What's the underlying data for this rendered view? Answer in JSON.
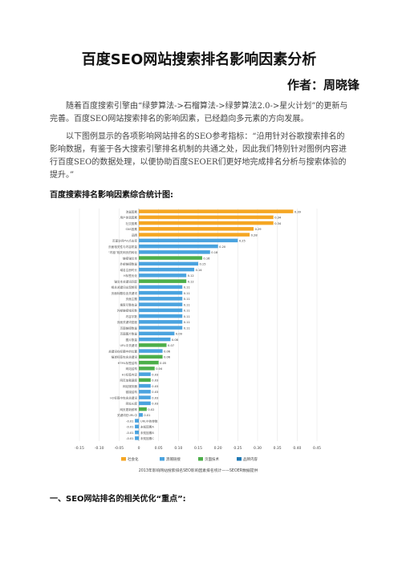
{
  "document": {
    "title": "百度SEO网站搜索排名影响因素分析",
    "author": "作者：周晓锋",
    "paragraph_1": "随着百度搜索引擎由“绿萝算法->石榴算法->绿萝算法2.0->星火计划”的更新与完善。百度SEO网站搜索排名的影响因素，已经趋向多元素的方向发展。",
    "paragraph_2": "以下图例显示的各项影响网站排名的SEO参考指标：“沿用针对谷歌搜索排名的影响数据，有鉴于各大搜索引擎排名机制的共通之处，因此我们特别针对图例内容进行百度SEO的数据处理，以便协助百度SEOER们更好地完成排名分析与搜索体验的提升。”",
    "chart_heading": "百度搜索排名影响因素综合统计图:",
    "section_heading": "一、SEO网站排名的相关优化“重点”:"
  },
  "chart_data": {
    "type": "bar",
    "orientation": "horizontal",
    "categories": [
      "流量因素",
      "用户体验因素",
      "社交因素",
      "SNS因素",
      "品牌",
      "页面访问PV/点击率",
      "页面相关性与内容质量",
      "“内链”相关网页的转化",
      "链接锚文本",
      "外部链接数量",
      "域名注册时长",
      "H标签优化",
      "锚文本关键词匹配",
      "相关关键词出现频率",
      "页面标题包含关键词",
      "页面主题",
      "搜索引擎收录",
      "外部链接域名数",
      "内容字数",
      "页面关键词密度",
      "页面链接数量",
      "页面图片数量",
      "图片数量",
      "URL中关键词",
      "关键词在标题中的位置",
      "描述标签包含关键词",
      "HTML标签结构",
      "网站结构",
      "H1标签内容",
      "网页加载速度",
      "网站服务器",
      "链接结构",
      "H2标签中包含关键词",
      "网址长度",
      "网页更新频率",
      "关键词在URL中",
      "URL中的参数",
      "未知因素A",
      "未知因素B",
      "未知因素C"
    ],
    "values": [
      0.39,
      0.34,
      0.34,
      0.29,
      0.28,
      0.25,
      0.2,
      0.18,
      0.16,
      0.15,
      0.14,
      0.12,
      0.12,
      0.11,
      0.11,
      0.11,
      0.11,
      0.11,
      0.11,
      0.11,
      0.11,
      0.09,
      0.08,
      0.07,
      0.06,
      0.06,
      0.05,
      0.04,
      0.03,
      0.03,
      0.03,
      0.03,
      0.03,
      0.03,
      0.02,
      0.01,
      -0.01,
      -0.01,
      -0.01,
      -0.01
    ],
    "colors": [
      "#f5a623",
      "#f5a623",
      "#f5a623",
      "#f5a623",
      "#f5a623",
      "#4aa3df",
      "#4aa3df",
      "#4aa3df",
      "#4daf4a",
      "#4aa3df",
      "#4aa3df",
      "#4aa3df",
      "#4daf4a",
      "#4aa3df",
      "#4aa3df",
      "#4aa3df",
      "#4aa3df",
      "#4aa3df",
      "#4aa3df",
      "#4aa3df",
      "#4aa3df",
      "#4aa3df",
      "#4aa3df",
      "#4daf4a",
      "#4aa3df",
      "#4daf4a",
      "#4daf4a",
      "#4daf4a",
      "#4aa3df",
      "#4daf4a",
      "#4aa3df",
      "#4aa3df",
      "#4aa3df",
      "#4aa3df",
      "#4daf4a",
      "#4aa3df",
      "#4aa3df",
      "#4aa3df",
      "#4aa3df",
      "#4aa3df"
    ],
    "xlim": [
      -0.15,
      0.45
    ],
    "xticks": [
      "-0.15",
      "-0.10",
      "-0.05",
      "0",
      "0.05",
      "0.10",
      "0.15",
      "0.20",
      "0.25",
      "0.30",
      "0.35",
      "0.40",
      "0.45"
    ],
    "legend": [
      {
        "name": "社会化",
        "color": "#f5a623"
      },
      {
        "name": "黑帽链接",
        "color": "#4aa3df"
      },
      {
        "name": "页面技术",
        "color": "#4daf4a"
      },
      {
        "name": "品牌内容",
        "color": "#1f78b4"
      }
    ],
    "legend_position": "bottom",
    "footer": "2013年影响网站搜索排名SEO影响因素排名统计——SEOER数据提供",
    "grid": true
  }
}
